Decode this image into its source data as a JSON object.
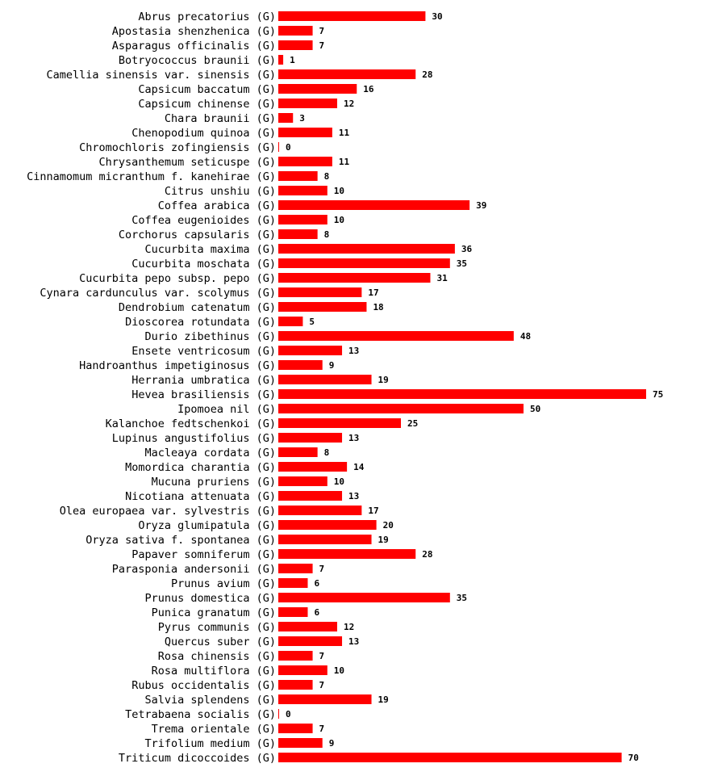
{
  "colors": {
    "bar": "#ff0000",
    "text": "#000000",
    "background": "#ffffff"
  },
  "chart_data": {
    "type": "bar",
    "orientation": "horizontal",
    "title": "",
    "xlabel": "",
    "ylabel": "",
    "grid": false,
    "legend": "none",
    "xlim": [
      0,
      75
    ],
    "series": [
      {
        "name": "count",
        "color": "#ff0000"
      }
    ],
    "items": [
      {
        "label": "Abrus precatorius (G)",
        "value": 30
      },
      {
        "label": "Apostasia shenzhenica (G)",
        "value": 7
      },
      {
        "label": "Asparagus officinalis (G)",
        "value": 7
      },
      {
        "label": "Botryococcus braunii (G)",
        "value": 1
      },
      {
        "label": "Camellia sinensis var. sinensis (G)",
        "value": 28
      },
      {
        "label": "Capsicum baccatum (G)",
        "value": 16
      },
      {
        "label": "Capsicum chinense (G)",
        "value": 12
      },
      {
        "label": "Chara braunii (G)",
        "value": 3
      },
      {
        "label": "Chenopodium quinoa (G)",
        "value": 11
      },
      {
        "label": "Chromochloris zofingiensis (G)",
        "value": 0
      },
      {
        "label": "Chrysanthemum seticuspe (G)",
        "value": 11
      },
      {
        "label": "Cinnamomum micranthum f. kanehirae (G)",
        "value": 8
      },
      {
        "label": "Citrus unshiu (G)",
        "value": 10
      },
      {
        "label": "Coffea arabica (G)",
        "value": 39
      },
      {
        "label": "Coffea eugenioides (G)",
        "value": 10
      },
      {
        "label": "Corchorus capsularis (G)",
        "value": 8
      },
      {
        "label": "Cucurbita maxima (G)",
        "value": 36
      },
      {
        "label": "Cucurbita moschata (G)",
        "value": 35
      },
      {
        "label": "Cucurbita pepo subsp. pepo (G)",
        "value": 31
      },
      {
        "label": "Cynara cardunculus var. scolymus (G)",
        "value": 17
      },
      {
        "label": "Dendrobium catenatum (G)",
        "value": 18
      },
      {
        "label": "Dioscorea rotundata (G)",
        "value": 5
      },
      {
        "label": "Durio zibethinus (G)",
        "value": 48
      },
      {
        "label": "Ensete ventricosum (G)",
        "value": 13
      },
      {
        "label": "Handroanthus impetiginosus (G)",
        "value": 9
      },
      {
        "label": "Herrania umbratica (G)",
        "value": 19
      },
      {
        "label": "Hevea brasiliensis (G)",
        "value": 75
      },
      {
        "label": "Ipomoea nil (G)",
        "value": 50
      },
      {
        "label": "Kalanchoe fedtschenkoi (G)",
        "value": 25
      },
      {
        "label": "Lupinus angustifolius (G)",
        "value": 13
      },
      {
        "label": "Macleaya cordata (G)",
        "value": 8
      },
      {
        "label": "Momordica charantia (G)",
        "value": 14
      },
      {
        "label": "Mucuna pruriens (G)",
        "value": 10
      },
      {
        "label": "Nicotiana attenuata (G)",
        "value": 13
      },
      {
        "label": "Olea europaea var. sylvestris (G)",
        "value": 17
      },
      {
        "label": "Oryza glumipatula (G)",
        "value": 20
      },
      {
        "label": "Oryza sativa f. spontanea (G)",
        "value": 19
      },
      {
        "label": "Papaver somniferum (G)",
        "value": 28
      },
      {
        "label": "Parasponia andersonii (G)",
        "value": 7
      },
      {
        "label": "Prunus avium (G)",
        "value": 6
      },
      {
        "label": "Prunus domestica (G)",
        "value": 35
      },
      {
        "label": "Punica granatum (G)",
        "value": 6
      },
      {
        "label": "Pyrus communis (G)",
        "value": 12
      },
      {
        "label": "Quercus suber (G)",
        "value": 13
      },
      {
        "label": "Rosa chinensis (G)",
        "value": 7
      },
      {
        "label": "Rosa multiflora (G)",
        "value": 10
      },
      {
        "label": "Rubus occidentalis (G)",
        "value": 7
      },
      {
        "label": "Salvia splendens (G)",
        "value": 19
      },
      {
        "label": "Tetrabaena socialis (G)",
        "value": 0
      },
      {
        "label": "Trema orientale (G)",
        "value": 7
      },
      {
        "label": "Trifolium medium (G)",
        "value": 9
      },
      {
        "label": "Triticum dicoccoides (G)",
        "value": 70
      }
    ]
  }
}
